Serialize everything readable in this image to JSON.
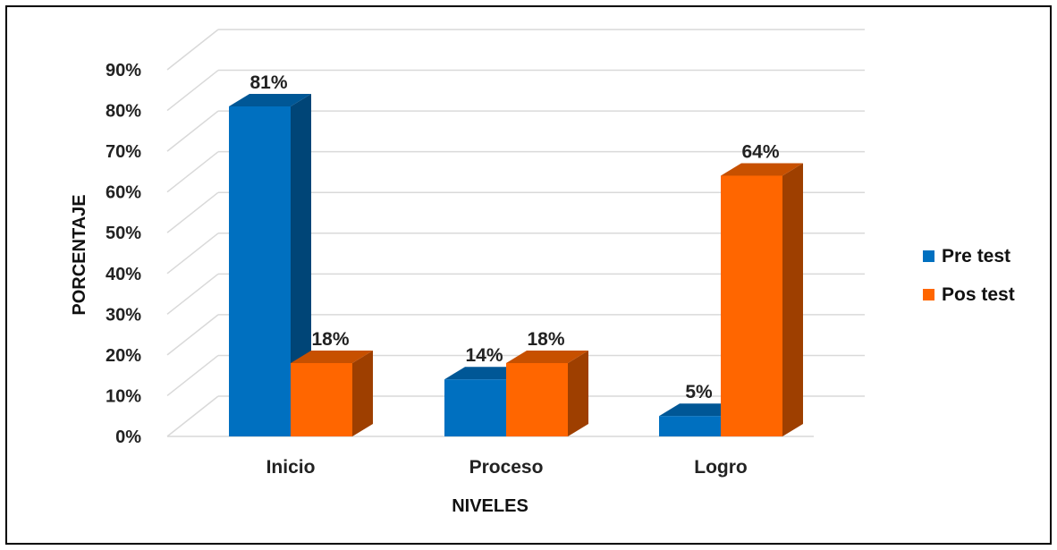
{
  "chart_data": {
    "type": "bar",
    "categories": [
      "Inicio",
      "Proceso",
      "Logro"
    ],
    "series": [
      {
        "name": "Pre test",
        "values": [
          81,
          14,
          5
        ],
        "labels": [
          "81%",
          "14%",
          "5%"
        ],
        "color": "#0070C0"
      },
      {
        "name": "Pos test",
        "values": [
          18,
          18,
          64
        ],
        "labels": [
          "18%",
          "18%",
          "64%"
        ],
        "color": "#FF6600"
      }
    ],
    "title": "",
    "xlabel": "NIVELES",
    "ylabel": "PORCENTAJE",
    "ylim": [
      0,
      90
    ],
    "yticks": [
      "0%",
      "10%",
      "20%",
      "30%",
      "40%",
      "50%",
      "60%",
      "70%",
      "80%",
      "90%"
    ],
    "grid": true,
    "legend_position": "right",
    "style": "3d-clustered-column"
  }
}
